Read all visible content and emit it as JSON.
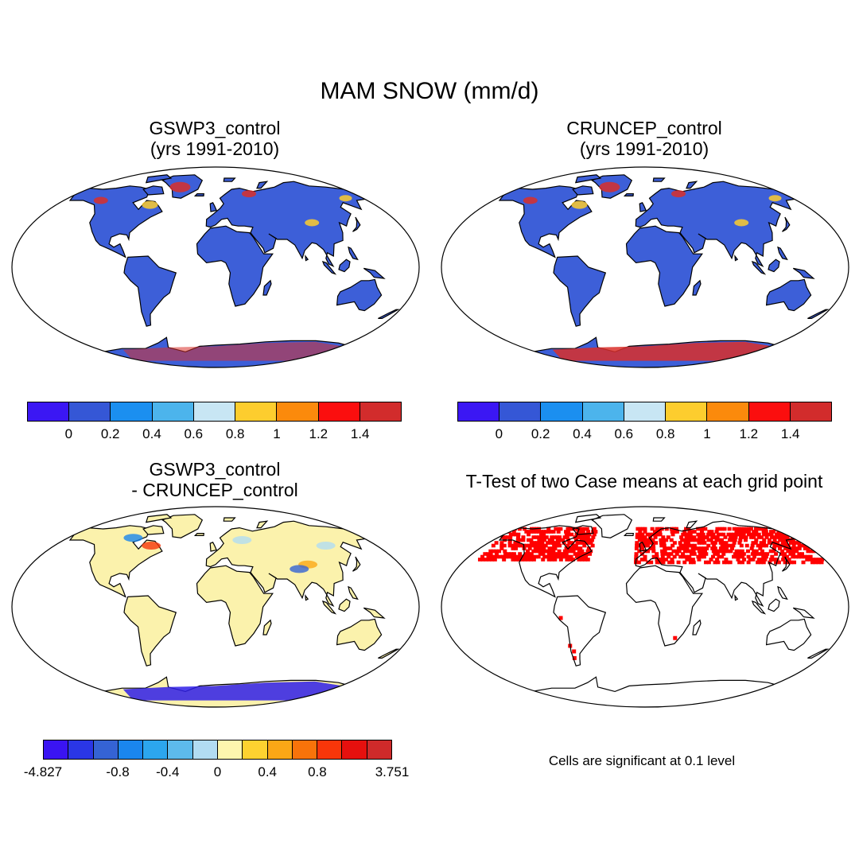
{
  "main_title": "MAM SNOW (mm/d)",
  "panels": {
    "gswp3": {
      "line1": "GSWP3_control",
      "line2": "(yrs 1991-2010)"
    },
    "cruncep": {
      "line1": "CRUNCEP_control",
      "line2": "(yrs 1991-2010)"
    },
    "diff": {
      "line1": "GSWP3_control",
      "line2": "- CRUNCEP_control"
    },
    "ttest": {
      "line1": "T-Test of two Case means at each grid point"
    }
  },
  "colorbar_mean": {
    "colors": [
      "#3b17f4",
      "#3557d6",
      "#1b8ff0",
      "#4cb4ec",
      "#c8e6f4",
      "#fdcd2e",
      "#fb8a0c",
      "#fb0e0e",
      "#d22c2c"
    ],
    "labels": [
      "0",
      "0.2",
      "0.4",
      "0.6",
      "0.8",
      "1",
      "1.2",
      "1.4"
    ]
  },
  "colorbar_diff": {
    "colors": [
      "#3a14f2",
      "#2a36e6",
      "#3563d4",
      "#1a86ee",
      "#2ca6ee",
      "#5dbaec",
      "#b2dcf2",
      "#fdf6ae",
      "#fdd230",
      "#fba716",
      "#f8730a",
      "#f8360a",
      "#e6100e",
      "#cf2a2a"
    ],
    "labels": [
      "-4.827",
      "-0.8",
      "-0.4",
      "0",
      "0.4",
      "0.8",
      "3.751"
    ]
  },
  "colors": {
    "land_mean": "#3d5fd8",
    "land_diff": "#fbf2ac",
    "significant": "#ff0000",
    "antarctic_high": "#d92f2a",
    "antarctic_low": "#2f1fe8"
  },
  "note": "Cells are significant at 0.1 level"
}
